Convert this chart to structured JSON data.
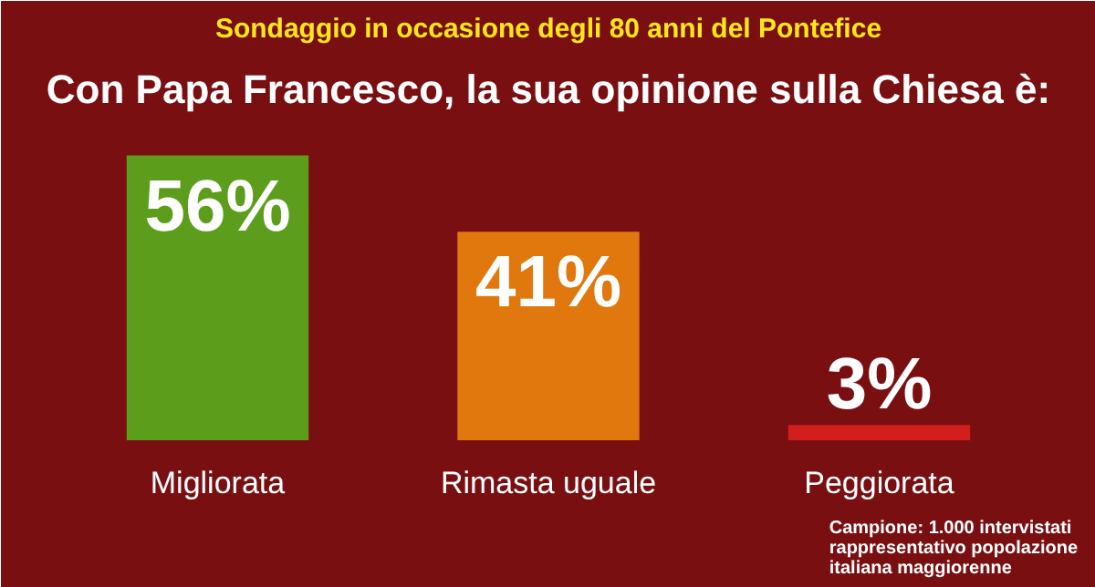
{
  "chart_data": {
    "type": "bar",
    "title": "Sondaggio in occasione degli 80 anni del Pontefice",
    "subtitle": "Con Papa Francesco, la sua opinione sulla Chiesa è:",
    "categories": [
      "Migliorata",
      "Rimasta uguale",
      "Peggiorata"
    ],
    "values": [
      56,
      41,
      3
    ],
    "colors": [
      "#5c9e1c",
      "#e0780e",
      "#d21e1e"
    ],
    "value_labels": [
      "56%",
      "41%",
      "3%"
    ],
    "annotations": [
      "Campione: 1.000 intervistati rappresentativo popolazione italiana maggiorenne"
    ]
  }
}
